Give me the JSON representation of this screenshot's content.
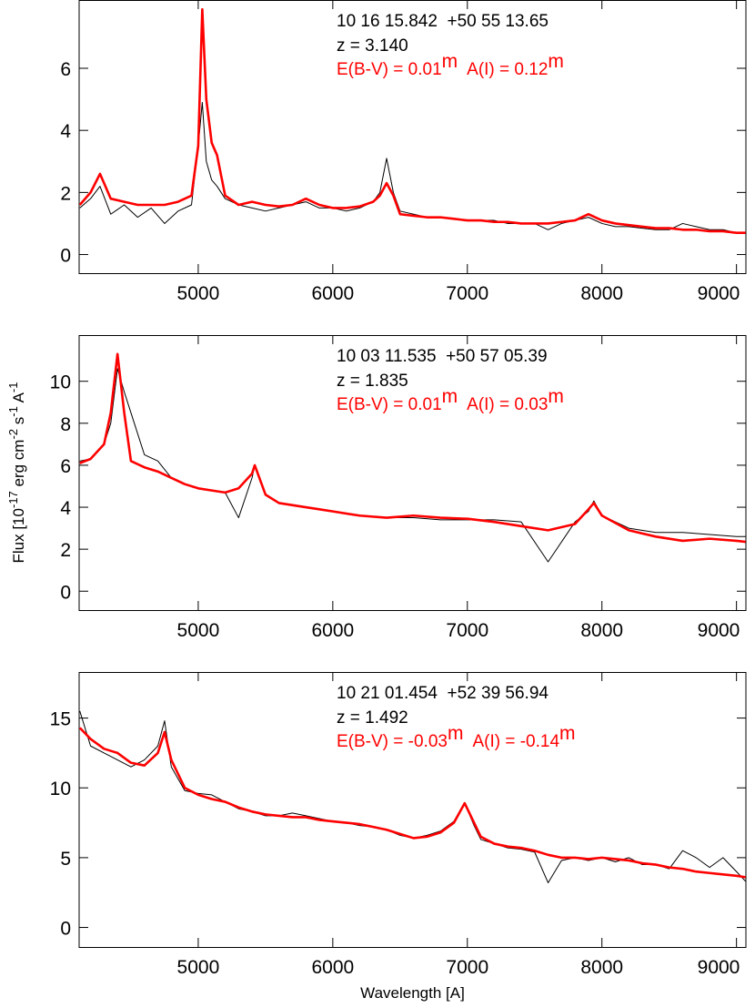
{
  "chart_data": [
    {
      "type": "line",
      "annotations": {
        "coords": "10 16 15.842  +50 55 13.65",
        "redshift": "z = 3.140",
        "extinction": "E(B-V) = 0.01",
        "absorption": "A(I) = 0.12",
        "unit": "m"
      },
      "x": [
        4120,
        4200,
        4270,
        4350,
        4450,
        4550,
        4650,
        4750,
        4850,
        4950,
        5000,
        5030,
        5060,
        5100,
        5140,
        5200,
        5300,
        5400,
        5500,
        5600,
        5700,
        5800,
        5900,
        6000,
        6100,
        6200,
        6300,
        6350,
        6400,
        6450,
        6500,
        6600,
        6700,
        6800,
        6900,
        7000,
        7100,
        7200,
        7300,
        7400,
        7500,
        7600,
        7700,
        7800,
        7900,
        8000,
        8100,
        8200,
        8300,
        8400,
        8500,
        8600,
        8700,
        8800,
        8900,
        9000,
        9068
      ],
      "series": [
        {
          "color": "#000000",
          "values": [
            1.5,
            1.8,
            2.2,
            1.3,
            1.6,
            1.2,
            1.5,
            1.0,
            1.4,
            1.6,
            3.5,
            4.9,
            3.0,
            2.4,
            2.2,
            1.8,
            1.6,
            1.5,
            1.4,
            1.5,
            1.6,
            1.7,
            1.5,
            1.5,
            1.4,
            1.5,
            1.7,
            2.0,
            3.1,
            2.0,
            1.4,
            1.3,
            1.2,
            1.2,
            1.15,
            1.1,
            1.1,
            1.1,
            1.0,
            1.0,
            1.0,
            0.8,
            1.0,
            1.1,
            1.2,
            1.0,
            0.9,
            0.9,
            0.85,
            0.8,
            0.8,
            1.0,
            0.9,
            0.8,
            0.8,
            0.7,
            0.7
          ]
        },
        {
          "color": "#ff0000",
          "values": [
            1.6,
            2.0,
            2.6,
            1.8,
            1.7,
            1.6,
            1.6,
            1.6,
            1.7,
            1.9,
            3.5,
            7.9,
            5.0,
            3.6,
            3.2,
            1.9,
            1.6,
            1.7,
            1.6,
            1.55,
            1.6,
            1.8,
            1.6,
            1.5,
            1.5,
            1.55,
            1.7,
            1.9,
            2.3,
            1.9,
            1.3,
            1.25,
            1.2,
            1.2,
            1.15,
            1.1,
            1.1,
            1.05,
            1.05,
            1.0,
            1.0,
            1.0,
            1.05,
            1.1,
            1.3,
            1.1,
            1.0,
            0.95,
            0.9,
            0.85,
            0.85,
            0.8,
            0.8,
            0.75,
            0.75,
            0.7,
            0.7
          ]
        }
      ],
      "xlim": [
        4115,
        9070
      ],
      "xticks": [
        5000,
        6000,
        7000,
        8000,
        9000
      ],
      "ylim": [
        -0.6,
        8.2
      ],
      "yticks": [
        0,
        2,
        4,
        6
      ]
    },
    {
      "type": "line",
      "annotations": {
        "coords": "10 03 11.535  +50 57 05.39",
        "redshift": "z = 1.835",
        "extinction": "E(B-V) = 0.01",
        "absorption": "A(I) = 0.03",
        "unit": "m"
      },
      "ylabel": [
        "Flux [10",
        "-17",
        " erg cm",
        "-2",
        " s",
        "-1",
        " A",
        "-1"
      ],
      "x": [
        4120,
        4200,
        4300,
        4350,
        4400,
        4450,
        4500,
        4600,
        4700,
        4800,
        4900,
        5000,
        5100,
        5200,
        5300,
        5400,
        5420,
        5500,
        5600,
        5800,
        5900,
        6000,
        6200,
        6400,
        6600,
        6800,
        7000,
        7200,
        7400,
        7600,
        7800,
        7900,
        7940,
        8000,
        8200,
        8400,
        8600,
        8800,
        9000,
        9068
      ],
      "series": [
        {
          "color": "#000000",
          "values": [
            6.2,
            6.3,
            7.0,
            8.0,
            10.6,
            9.5,
            8.5,
            6.5,
            6.2,
            5.4,
            5.1,
            4.9,
            4.8,
            4.7,
            3.5,
            5.4,
            6.0,
            4.6,
            4.2,
            4.0,
            3.9,
            3.8,
            3.6,
            3.5,
            3.5,
            3.4,
            3.4,
            3.4,
            3.3,
            1.4,
            3.3,
            3.8,
            4.3,
            3.6,
            3.0,
            2.8,
            2.8,
            2.7,
            2.6,
            2.6
          ]
        },
        {
          "color": "#ff0000",
          "values": [
            6.1,
            6.3,
            7.0,
            8.5,
            11.3,
            8.5,
            6.2,
            5.9,
            5.7,
            5.4,
            5.1,
            4.9,
            4.8,
            4.7,
            4.9,
            5.6,
            6.0,
            4.6,
            4.2,
            4.0,
            3.9,
            3.8,
            3.6,
            3.5,
            3.6,
            3.5,
            3.45,
            3.3,
            3.1,
            2.9,
            3.2,
            3.9,
            4.2,
            3.6,
            2.9,
            2.6,
            2.4,
            2.5,
            2.4,
            2.35
          ]
        }
      ],
      "xlim": [
        4115,
        9070
      ],
      "xticks": [
        5000,
        6000,
        7000,
        8000,
        9000
      ],
      "ylim": [
        -0.9,
        12.2
      ],
      "yticks": [
        0,
        2,
        4,
        6,
        8,
        10
      ]
    },
    {
      "type": "line",
      "annotations": {
        "coords": "10 21 01.454  +52 39 56.94",
        "redshift": "z = 1.492",
        "extinction": "E(B-V) = -0.03",
        "absorption": "A(I) = -0.14",
        "unit": "m"
      },
      "xlabel": "Wavelength [A]",
      "x": [
        4120,
        4200,
        4300,
        4400,
        4500,
        4600,
        4700,
        4750,
        4800,
        4900,
        5000,
        5100,
        5200,
        5300,
        5400,
        5500,
        5600,
        5700,
        5800,
        5900,
        6000,
        6100,
        6200,
        6300,
        6400,
        6500,
        6600,
        6700,
        6800,
        6900,
        6980,
        7050,
        7100,
        7200,
        7300,
        7400,
        7500,
        7600,
        7700,
        7800,
        7900,
        8000,
        8100,
        8200,
        8300,
        8400,
        8500,
        8600,
        8700,
        8800,
        8900,
        9000,
        9068
      ],
      "series": [
        {
          "color": "#000000",
          "values": [
            15.5,
            13.0,
            12.5,
            12.0,
            11.5,
            12.0,
            13.0,
            14.8,
            11.5,
            9.8,
            9.6,
            9.5,
            9.0,
            8.5,
            8.3,
            8.0,
            8.0,
            8.2,
            8.0,
            7.8,
            7.6,
            7.5,
            7.3,
            7.2,
            7.0,
            6.6,
            6.4,
            6.6,
            6.9,
            7.6,
            8.9,
            7.3,
            6.3,
            6.0,
            5.7,
            5.6,
            5.4,
            3.2,
            4.8,
            5.0,
            4.8,
            5.0,
            4.7,
            5.0,
            4.5,
            4.5,
            4.2,
            5.5,
            5.0,
            4.3,
            5.0,
            4.0,
            3.3
          ]
        },
        {
          "color": "#ff0000",
          "values": [
            14.3,
            13.5,
            12.8,
            12.5,
            11.8,
            11.6,
            12.5,
            14.0,
            12.0,
            10.0,
            9.5,
            9.2,
            9.0,
            8.6,
            8.3,
            8.1,
            8.0,
            7.9,
            7.9,
            7.7,
            7.6,
            7.5,
            7.4,
            7.2,
            7.0,
            6.7,
            6.4,
            6.5,
            6.8,
            7.5,
            8.9,
            7.5,
            6.5,
            6.0,
            5.8,
            5.7,
            5.5,
            5.2,
            5.0,
            5.0,
            4.9,
            5.0,
            4.9,
            4.8,
            4.6,
            4.5,
            4.3,
            4.2,
            4.0,
            3.9,
            3.8,
            3.7,
            3.6
          ]
        }
      ],
      "xlim": [
        4115,
        9070
      ],
      "xticks": [
        5000,
        6000,
        7000,
        8000,
        9000
      ],
      "ylim": [
        -1.4,
        18.3
      ],
      "yticks": [
        0,
        5,
        10,
        15
      ]
    }
  ]
}
